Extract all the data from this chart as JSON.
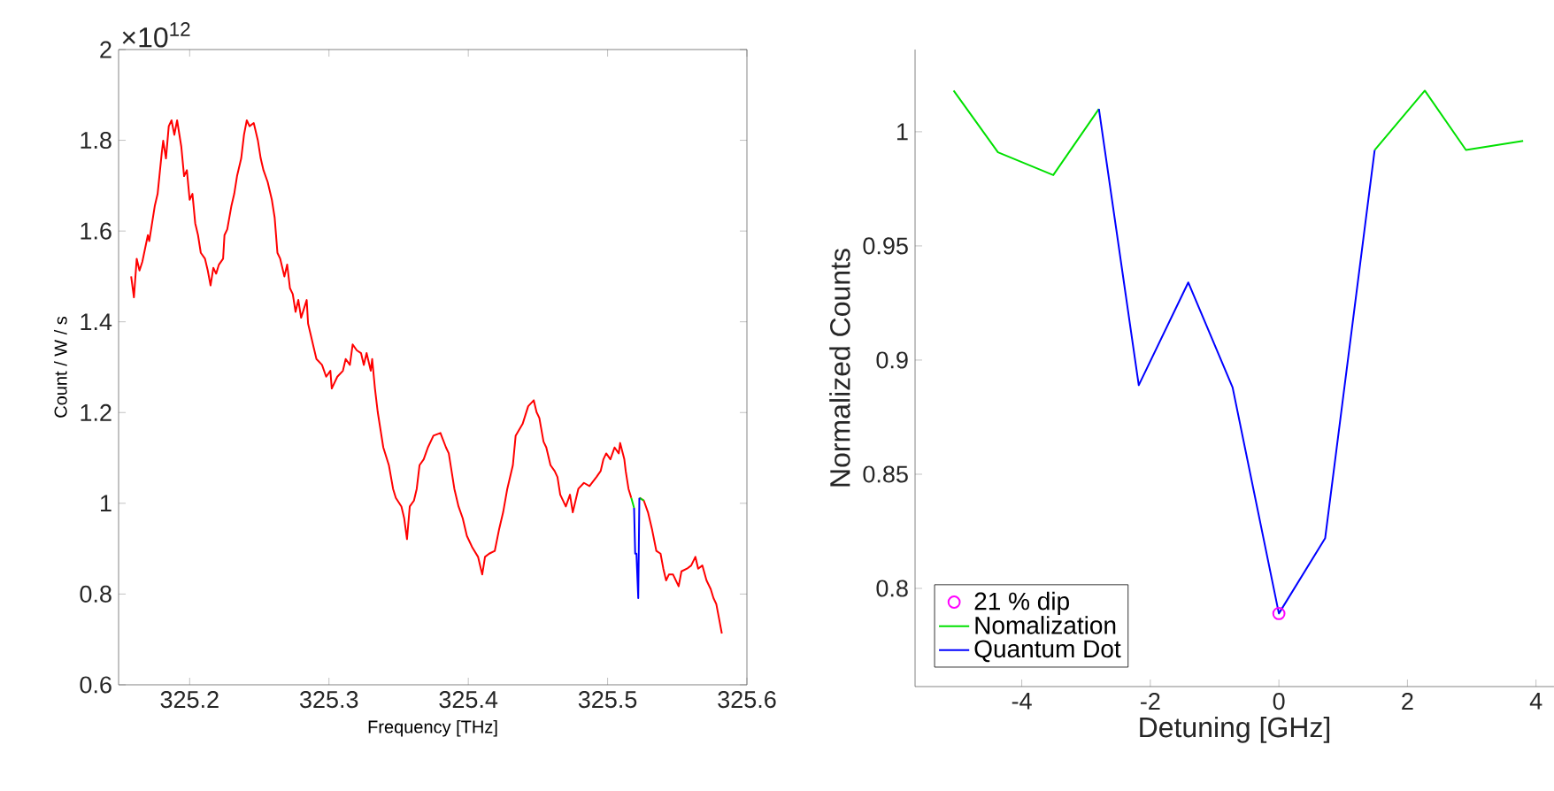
{
  "chart_data": [
    {
      "type": "line",
      "xlabel": "Frequency [THz]",
      "ylabel": "Count / W / s",
      "annotations": [
        "×10$^{12}$"
      ],
      "xlim": [
        325.149,
        325.6
      ],
      "ylim": [
        0.6,
        2
      ],
      "xticks": [
        325.2,
        325.3,
        325.4,
        325.5,
        325.6
      ],
      "yticks": [
        0.6,
        0.8,
        1,
        1.2,
        1.4,
        1.6,
        1.8,
        2
      ],
      "series": [
        {
          "color": "#ff0000",
          "x": [
            325.158,
            325.16,
            325.162,
            325.164,
            325.166,
            325.17,
            325.171,
            325.175,
            325.177,
            325.18,
            325.181,
            325.183,
            325.185,
            325.187,
            325.189,
            325.191,
            325.194,
            325.196,
            325.198,
            325.2,
            325.202,
            325.204,
            325.206,
            325.208,
            325.211,
            325.213,
            325.215,
            325.217,
            325.219,
            325.221,
            325.224,
            325.225,
            325.227,
            325.23,
            325.232,
            325.234,
            325.237,
            325.239,
            325.241,
            325.243,
            325.246,
            325.249,
            325.251,
            325.253,
            325.256,
            325.259,
            325.261,
            325.263,
            325.265,
            325.268,
            325.27,
            325.272,
            325.274,
            325.276,
            325.278,
            325.28,
            325.284,
            325.285,
            325.287,
            325.289,
            325.291,
            325.295,
            325.298,
            325.301,
            325.302,
            325.306,
            325.31,
            325.312,
            325.315,
            325.317,
            325.32,
            325.323,
            325.325,
            325.327,
            325.33,
            325.331,
            325.333,
            325.335,
            325.337,
            325.339,
            325.343,
            325.346,
            325.348,
            325.352,
            325.354,
            325.356,
            325.358,
            325.361,
            325.363,
            325.365,
            325.368,
            325.371,
            325.375,
            325.38,
            325.384,
            325.386,
            325.388,
            325.39,
            325.393,
            325.396,
            325.399,
            325.403,
            325.407,
            325.41,
            325.412,
            325.415,
            325.419,
            325.422,
            325.425,
            325.428,
            325.432,
            325.434,
            325.439,
            325.443,
            325.447,
            325.449,
            325.451,
            325.454,
            325.456,
            325.459,
            325.462,
            325.464,
            325.466,
            325.47,
            325.473,
            325.475,
            325.477,
            325.479,
            325.483,
            325.487,
            325.492,
            325.495,
            325.497,
            325.499,
            325.502,
            325.505,
            325.508,
            325.509,
            325.512,
            325.513,
            325.515,
            325.517,
            325.52,
            325.523,
            325.526,
            325.529,
            325.532,
            325.535,
            325.538,
            325.54,
            325.542,
            325.544,
            325.547,
            325.551,
            325.553,
            325.557,
            325.56,
            325.563,
            325.565,
            325.568,
            325.571,
            325.574,
            325.576,
            325.578,
            325.58,
            325.582
          ],
          "values": [
            1.5,
            1.454,
            1.539,
            1.513,
            1.532,
            1.591,
            1.578,
            1.656,
            1.682,
            1.773,
            1.799,
            1.76,
            1.831,
            1.844,
            1.812,
            1.844,
            1.786,
            1.721,
            1.734,
            1.669,
            1.682,
            1.617,
            1.591,
            1.552,
            1.539,
            1.513,
            1.48,
            1.519,
            1.506,
            1.526,
            1.539,
            1.591,
            1.604,
            1.656,
            1.682,
            1.721,
            1.76,
            1.812,
            1.844,
            1.831,
            1.838,
            1.799,
            1.76,
            1.734,
            1.708,
            1.669,
            1.63,
            1.552,
            1.539,
            1.5,
            1.526,
            1.474,
            1.461,
            1.422,
            1.448,
            1.409,
            1.448,
            1.396,
            1.37,
            1.344,
            1.318,
            1.305,
            1.279,
            1.292,
            1.253,
            1.279,
            1.292,
            1.318,
            1.305,
            1.35,
            1.337,
            1.331,
            1.305,
            1.331,
            1.292,
            1.318,
            1.253,
            1.201,
            1.162,
            1.123,
            1.084,
            1.032,
            1.012,
            0.993,
            0.967,
            0.921,
            0.993,
            1.006,
            1.032,
            1.084,
            1.097,
            1.123,
            1.149,
            1.155,
            1.123,
            1.11,
            1.071,
            1.032,
            0.993,
            0.967,
            0.928,
            0.902,
            0.882,
            0.843,
            0.882,
            0.889,
            0.895,
            0.941,
            0.98,
            1.032,
            1.084,
            1.149,
            1.175,
            1.214,
            1.227,
            1.201,
            1.188,
            1.136,
            1.123,
            1.084,
            1.071,
            1.058,
            1.019,
            0.993,
            1.019,
            0.98,
            1.006,
            1.032,
            1.045,
            1.038,
            1.058,
            1.071,
            1.097,
            1.11,
            1.097,
            1.123,
            1.11,
            1.133,
            1.097,
            1.071,
            1.032,
            1.012,
            null,
            1.012,
            1.006,
            0.98,
            0.941,
            0.895,
            0.889,
            0.856,
            0.83,
            0.843,
            0.843,
            0.817,
            0.85,
            0.856,
            0.863,
            0.882,
            0.856,
            0.863,
            0.83,
            0.811,
            0.791,
            0.778,
            0.746,
            0.713
          ]
        },
        {
          "color": "#00e000",
          "x": [
            325.517,
            325.519,
            325.52,
            325.5228,
            325.526
          ],
          "values": [
            1.012,
            0.99,
            null,
            1.012,
            1.006
          ]
        },
        {
          "color": "#0000ff",
          "x": [
            325.519,
            325.5198,
            325.5207,
            325.522,
            325.5228
          ],
          "values": [
            0.99,
            0.889,
            0.889,
            0.791,
            1.012
          ]
        }
      ]
    },
    {
      "type": "line",
      "xlabel": "Detuning [GHz]",
      "ylabel": "Normalized Counts",
      "legend": "bottom left",
      "xlim": [
        -5.66,
        4.28
      ],
      "ylim": [
        0.757,
        1.036
      ],
      "xticks": [
        -4,
        -2,
        0,
        2,
        4
      ],
      "yticks": [
        0.8,
        0.85,
        0.9,
        0.95,
        1
      ],
      "series": [
        {
          "name": "21 % dip",
          "type": "scatter",
          "marker": "circle",
          "color": "#ff00ff",
          "x": [
            0
          ],
          "values": [
            0.789
          ]
        },
        {
          "name": "Nomalization",
          "color": "#00e000",
          "x": [
            -5.06,
            -4.37,
            -3.51,
            -2.8,
            -2.18,
            -1.41,
            -0.72,
            0,
            0.72,
            1.49,
            2.27,
            2.91,
            3.8
          ],
          "values": [
            1.018,
            0.991,
            0.981,
            1.01,
            null,
            null,
            null,
            null,
            null,
            0.992,
            1.018,
            0.992,
            0.996
          ]
        },
        {
          "name": "Quantum Dot",
          "color": "#0000ff",
          "x": [
            -2.8,
            -2.18,
            -1.41,
            -0.72,
            0,
            0.72,
            1.49
          ],
          "values": [
            1.01,
            0.889,
            0.934,
            0.888,
            0.789,
            0.822,
            0.992
          ]
        }
      ]
    }
  ]
}
